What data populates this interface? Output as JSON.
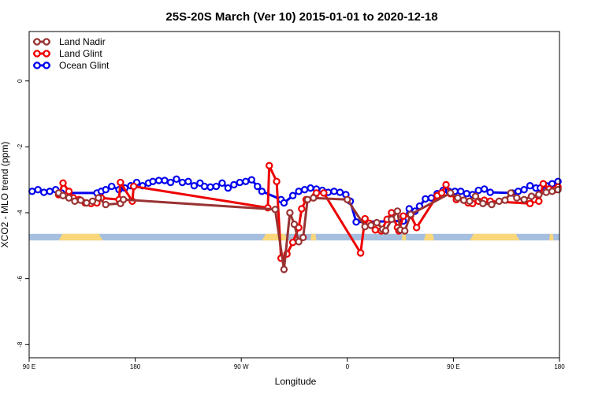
{
  "chart_data": {
    "type": "line",
    "title": "25S-20S March (Ver 10)   2015-01-01 to 2020-12-18",
    "xlabel": "Longitude",
    "ylabel": "XCO2 - MLO trend (ppm)",
    "xlim": [
      90,
      450
    ],
    "ylim": [
      -8.4,
      1.5
    ],
    "x_ticks": [
      {
        "value": 90,
        "label": "90 E"
      },
      {
        "value": 162,
        "label": "180"
      },
      {
        "value": 234,
        "label": "90 W"
      },
      {
        "value": 306,
        "label": "0"
      },
      {
        "value": 378,
        "label": "90 E"
      },
      {
        "value": 450,
        "label": "180"
      }
    ],
    "y_ticks": [
      {
        "value": 0,
        "label": "0"
      },
      {
        "value": -2,
        "label": "-2"
      },
      {
        "value": -4,
        "label": "-4"
      },
      {
        "value": -6,
        "label": "-6"
      },
      {
        "value": -8,
        "label": "-8"
      }
    ],
    "grid": false,
    "legend": {
      "position": "top-left"
    },
    "surface_band": {
      "y_range": [
        -4.84,
        -4.64
      ],
      "ocean_color": "#a6bfdf",
      "land_color": "#f9d77a",
      "land_x_ranges": [
        [
          110,
          140
        ],
        [
          248,
          266
        ],
        [
          281,
          285
        ],
        [
          343,
          346
        ],
        [
          358,
          365
        ],
        [
          389,
          423
        ],
        [
          443,
          446
        ]
      ]
    },
    "series": [
      {
        "name": "Ocean Glint",
        "color": "#0000ee",
        "x": [
          92,
          96,
          100,
          104,
          108,
          112,
          136,
          139,
          142,
          146,
          151,
          155,
          159,
          163,
          167,
          171,
          174,
          178,
          182,
          186,
          190,
          194,
          198,
          202,
          206,
          209,
          213,
          217,
          221,
          225,
          229,
          233,
          237,
          241,
          245,
          248,
          261,
          263,
          269,
          273,
          277,
          281,
          285,
          289,
          293,
          297,
          301,
          305,
          308,
          312,
          344,
          348,
          352,
          355,
          359,
          363,
          367,
          371,
          375,
          379,
          383,
          387,
          391,
          395,
          399,
          403,
          418,
          422,
          426,
          430,
          434,
          437,
          441,
          445,
          449
        ],
        "y": [
          -3.35,
          -3.3,
          -3.38,
          -3.35,
          -3.3,
          -3.4,
          -3.4,
          -3.35,
          -3.3,
          -3.2,
          -3.3,
          -3.25,
          -3.18,
          -3.08,
          -3.18,
          -3.1,
          -3.05,
          -3.02,
          -3.02,
          -3.08,
          -2.98,
          -3.08,
          -3.05,
          -3.18,
          -3.1,
          -3.2,
          -3.22,
          -3.2,
          -3.1,
          -3.25,
          -3.15,
          -3.08,
          -3.05,
          -3.0,
          -3.2,
          -3.35,
          -3.6,
          -3.7,
          -3.48,
          -3.35,
          -3.3,
          -3.25,
          -3.28,
          -3.32,
          -3.38,
          -3.35,
          -3.38,
          -3.45,
          -3.65,
          -4.28,
          -4.25,
          -3.88,
          -3.95,
          -3.8,
          -3.58,
          -3.55,
          -3.42,
          -3.32,
          -3.35,
          -3.35,
          -3.35,
          -3.42,
          -3.45,
          -3.32,
          -3.28,
          -3.38,
          -3.4,
          -3.35,
          -3.3,
          -3.18,
          -3.25,
          -3.25,
          -3.18,
          -3.12,
          -3.05
        ]
      },
      {
        "name": "Land Glint",
        "color": "#ee0000",
        "x": [
          110,
          113,
          117,
          120,
          124,
          128,
          132,
          136,
          139,
          151,
          152,
          160,
          161,
          252,
          253,
          258,
          261,
          265,
          269,
          273,
          275,
          278,
          284,
          285,
          290,
          315,
          318,
          321,
          325,
          329,
          333,
          336,
          340,
          341,
          344,
          349,
          353,
          367,
          370,
          373,
          376,
          380,
          385,
          388,
          391,
          395,
          399,
          403,
          430,
          433,
          436,
          439,
          443,
          447,
          449
        ],
        "y": [
          -3.45,
          -3.1,
          -3.35,
          -3.55,
          -3.6,
          -3.7,
          -3.72,
          -3.7,
          -3.55,
          -3.6,
          -3.08,
          -3.65,
          -3.2,
          -3.85,
          -2.57,
          -3.05,
          -5.38,
          -5.25,
          -4.9,
          -4.45,
          -3.88,
          -3.6,
          -3.5,
          -3.4,
          -3.4,
          -5.22,
          -4.18,
          -4.32,
          -4.52,
          -4.55,
          -4.2,
          -4.0,
          -4.45,
          -4.55,
          -4.1,
          -4.08,
          -4.45,
          -3.48,
          -3.4,
          -3.15,
          -3.42,
          -3.6,
          -3.62,
          -3.7,
          -3.72,
          -3.65,
          -3.62,
          -3.65,
          -3.72,
          -3.6,
          -3.65,
          -3.12,
          -3.28,
          -3.3,
          -3.22
        ]
      },
      {
        "name": "Land Nadir",
        "color": "#993333",
        "x": [
          110,
          113,
          117,
          121,
          125,
          129,
          133,
          137,
          142,
          152,
          154,
          257,
          263,
          267,
          270,
          273,
          276,
          279,
          283,
          306,
          318,
          322,
          326,
          330,
          332,
          336,
          340,
          342,
          345,
          349,
          376,
          381,
          385,
          389,
          393,
          398,
          404,
          409,
          413,
          417,
          421,
          426,
          431,
          436,
          441,
          445,
          449
        ],
        "y": [
          -3.4,
          -3.48,
          -3.55,
          -3.65,
          -3.62,
          -3.7,
          -3.65,
          -3.55,
          -3.75,
          -3.72,
          -3.6,
          -3.9,
          -5.72,
          -4.0,
          -4.35,
          -4.88,
          -4.75,
          -3.6,
          -3.55,
          -3.6,
          -4.42,
          -4.38,
          -4.3,
          -4.5,
          -4.55,
          -4.2,
          -3.95,
          -4.52,
          -4.55,
          -4.05,
          -3.4,
          -3.55,
          -3.62,
          -3.65,
          -3.5,
          -3.72,
          -3.75,
          -3.65,
          -3.62,
          -3.4,
          -3.55,
          -3.6,
          -3.5,
          -3.45,
          -3.38,
          -3.35,
          -3.3
        ]
      }
    ]
  }
}
